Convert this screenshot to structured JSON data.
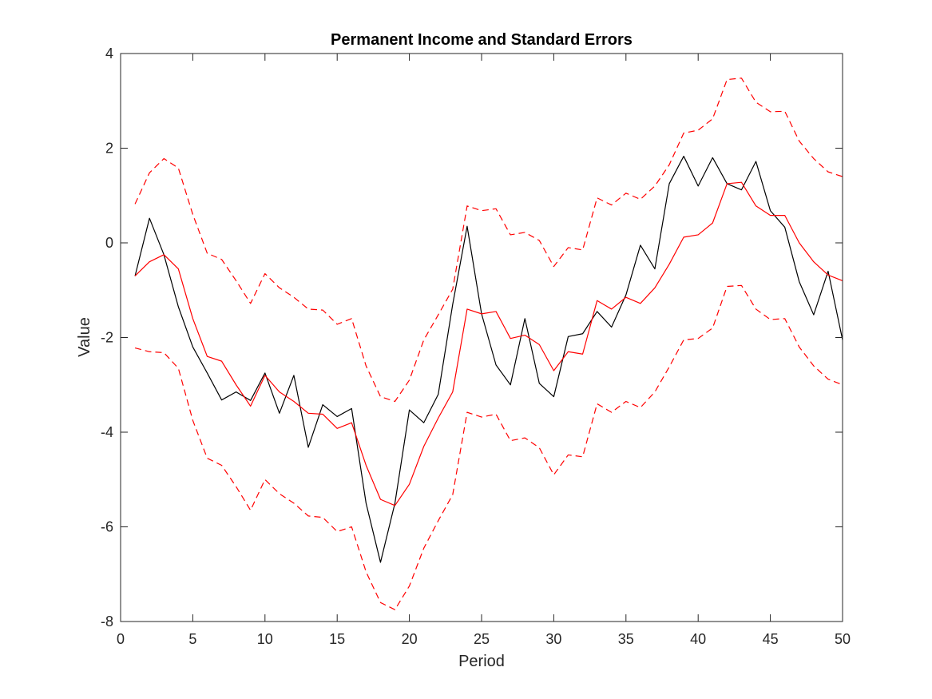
{
  "chart_data": {
    "type": "line",
    "title": "Permanent Income and Standard Errors",
    "xlabel": "Period",
    "ylabel": "Value",
    "xlim": [
      0,
      50
    ],
    "ylim": [
      -8,
      4
    ],
    "xticks": [
      0,
      5,
      10,
      15,
      20,
      25,
      30,
      35,
      40,
      45,
      50
    ],
    "yticks": [
      -8,
      -6,
      -4,
      -2,
      0,
      2,
      4
    ],
    "grid": false,
    "x": [
      1,
      2,
      3,
      4,
      5,
      6,
      7,
      8,
      9,
      10,
      11,
      12,
      13,
      14,
      15,
      16,
      17,
      18,
      19,
      20,
      21,
      22,
      23,
      24,
      25,
      26,
      27,
      28,
      29,
      30,
      31,
      32,
      33,
      34,
      35,
      36,
      37,
      38,
      39,
      40,
      41,
      42,
      43,
      44,
      45,
      46,
      47,
      48,
      49,
      50
    ],
    "series": [
      {
        "color": "#000000",
        "style": "solid",
        "values": [
          -0.7,
          0.52,
          -0.25,
          -1.35,
          -2.2,
          -2.75,
          -3.32,
          -3.15,
          -3.33,
          -2.75,
          -3.6,
          -2.8,
          -4.32,
          -3.42,
          -3.67,
          -3.5,
          -5.5,
          -6.75,
          -5.5,
          -3.53,
          -3.8,
          -3.2,
          -1.3,
          0.35,
          -1.5,
          -2.58,
          -3.0,
          -1.6,
          -2.97,
          -3.25,
          -1.98,
          -1.92,
          -1.45,
          -1.78,
          -1.1,
          -0.05,
          -0.55,
          1.25,
          1.83,
          1.2,
          1.8,
          1.25,
          1.12,
          1.72,
          0.68,
          0.33,
          -0.82,
          -1.52,
          -0.6,
          -2.05
        ]
      },
      {
        "color": "#ff0000",
        "style": "solid",
        "values": [
          -0.7,
          -0.4,
          -0.25,
          -0.55,
          -1.6,
          -2.4,
          -2.5,
          -3.0,
          -3.45,
          -2.8,
          -3.15,
          -3.35,
          -3.6,
          -3.62,
          -3.92,
          -3.8,
          -4.7,
          -5.42,
          -5.55,
          -5.1,
          -4.3,
          -3.7,
          -3.15,
          -1.4,
          -1.5,
          -1.45,
          -2.02,
          -1.95,
          -2.15,
          -2.7,
          -2.3,
          -2.35,
          -1.22,
          -1.4,
          -1.15,
          -1.28,
          -0.95,
          -0.45,
          0.12,
          0.17,
          0.42,
          1.25,
          1.28,
          0.78,
          0.58,
          0.58,
          0.0,
          -0.4,
          -0.68,
          -0.8
        ]
      },
      {
        "color": "#ff0000",
        "style": "dashed",
        "values": [
          0.82,
          1.48,
          1.78,
          1.58,
          0.6,
          -0.22,
          -0.35,
          -0.8,
          -1.28,
          -0.65,
          -0.95,
          -1.15,
          -1.4,
          -1.42,
          -1.72,
          -1.6,
          -2.6,
          -3.25,
          -3.35,
          -2.9,
          -2.05,
          -1.52,
          -0.98,
          0.78,
          0.68,
          0.72,
          0.17,
          0.22,
          0.05,
          -0.5,
          -0.1,
          -0.15,
          0.95,
          0.8,
          1.05,
          0.92,
          1.2,
          1.65,
          2.32,
          2.38,
          2.62,
          3.45,
          3.48,
          2.97,
          2.77,
          2.78,
          2.15,
          1.78,
          1.5,
          1.4
        ]
      },
      {
        "color": "#ff0000",
        "style": "dashed",
        "values": [
          -2.22,
          -2.3,
          -2.32,
          -2.65,
          -3.75,
          -4.55,
          -4.7,
          -5.15,
          -5.65,
          -5.0,
          -5.3,
          -5.5,
          -5.77,
          -5.8,
          -6.1,
          -6.0,
          -6.95,
          -7.6,
          -7.75,
          -7.25,
          -6.45,
          -5.87,
          -5.32,
          -3.58,
          -3.68,
          -3.62,
          -4.18,
          -4.12,
          -4.33,
          -4.9,
          -4.48,
          -4.52,
          -3.4,
          -3.58,
          -3.35,
          -3.48,
          -3.15,
          -2.62,
          -2.05,
          -2.02,
          -1.8,
          -0.92,
          -0.9,
          -1.4,
          -1.62,
          -1.6,
          -2.2,
          -2.6,
          -2.88,
          -3.0
        ]
      }
    ]
  }
}
